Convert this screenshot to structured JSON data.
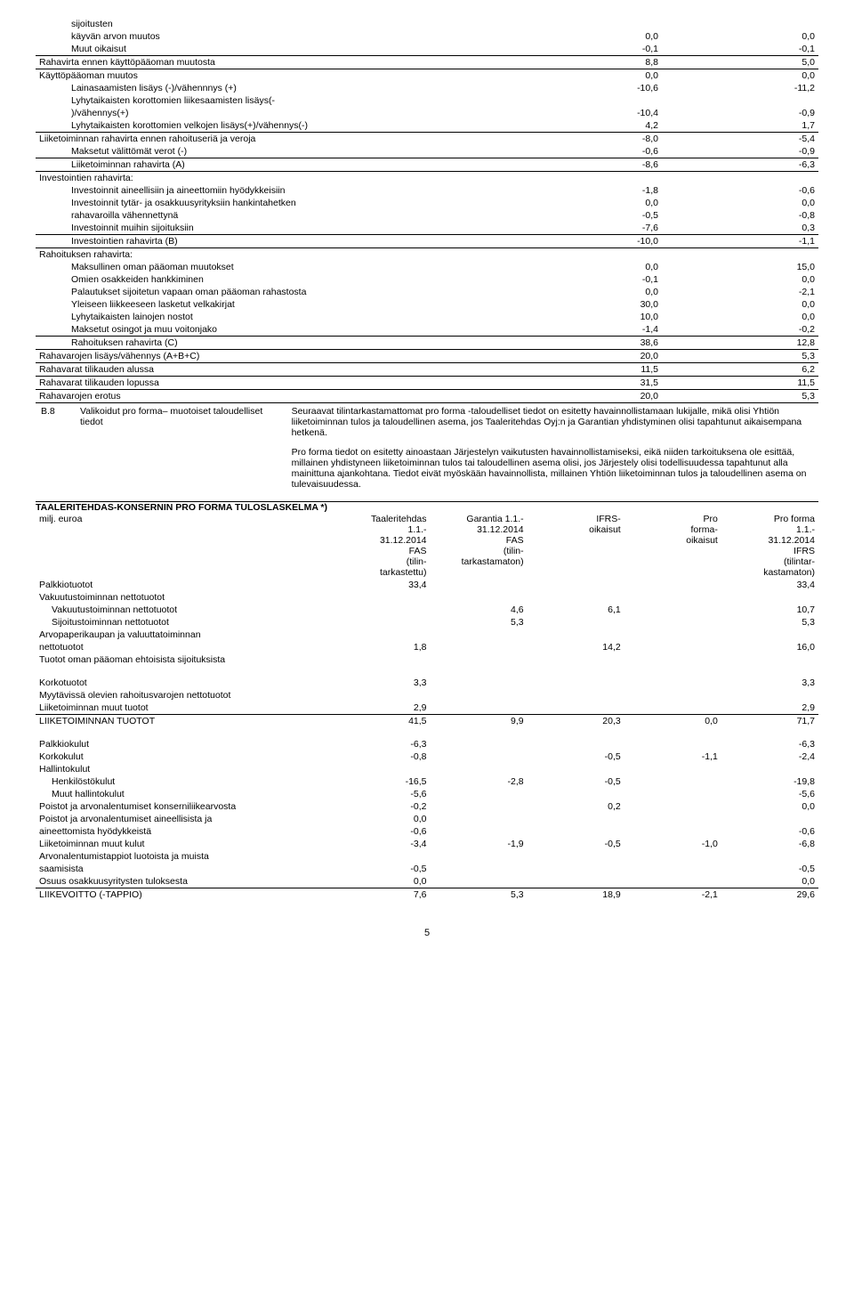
{
  "cashflow": {
    "rows": [
      {
        "label": "sijoitusten",
        "indent": 1,
        "v1": "",
        "v2": "",
        "underline": false
      },
      {
        "label": "käyvän arvon muutos",
        "indent": 1,
        "v1": "0,0",
        "v2": "0,0",
        "underline": false
      },
      {
        "label": "Muut oikaisut",
        "indent": 1,
        "v1": "-0,1",
        "v2": "-0,1",
        "underline": true
      },
      {
        "label": "Rahavirta ennen käyttöpääoman muutosta",
        "indent": 0,
        "v1": "8,8",
        "v2": "5,0",
        "underline": true
      },
      {
        "label": "Käyttöpääoman muutos",
        "indent": 0,
        "v1": "0,0",
        "v2": "0,0",
        "underline": false
      },
      {
        "label": "Lainasaamisten lisäys (-)/vähennnys (+)",
        "indent": 1,
        "v1": "-10,6",
        "v2": "-11,2",
        "underline": false
      },
      {
        "label": "Lyhytaikaisten korottomien liikesaamisten lisäys(-",
        "indent": 1,
        "v1": "",
        "v2": "",
        "underline": false
      },
      {
        "label": ")/vähennys(+)",
        "indent": 1,
        "v1": "-10,4",
        "v2": "-0,9",
        "underline": false
      },
      {
        "label": "Lyhytaikaisten korottomien velkojen lisäys(+)/vähennys(-)",
        "indent": 1,
        "v1": "4,2",
        "v2": "1,7",
        "underline": true
      },
      {
        "label": "Liiketoiminnan rahavirta ennen rahoituseriä ja veroja",
        "indent": 0,
        "v1": "-8,0",
        "v2": "-5,4",
        "underline": false
      },
      {
        "label": "Maksetut välittömät verot (-)",
        "indent": 1,
        "v1": "-0,6",
        "v2": "-0,9",
        "underline": true
      },
      {
        "label": "Liiketoiminnan rahavirta (A)",
        "indent": 1,
        "v1": "-8,6",
        "v2": "-6,3",
        "underline": true
      },
      {
        "label": "Investointien rahavirta:",
        "indent": 0,
        "v1": "",
        "v2": "",
        "underline": false
      },
      {
        "label": "Investoinnit aineellisiin ja aineettomiin  hyödykkeisiin",
        "indent": 1,
        "v1": "-1,8",
        "v2": "-0,6",
        "underline": false
      },
      {
        "label": "Investoinnit tytär- ja osakkuusyrityksiin hankintahetken",
        "indent": 1,
        "v1": "0,0",
        "v2": "0,0",
        "underline": false
      },
      {
        "label": "rahavaroilla vähennettynä",
        "indent": 1,
        "v1": "-0,5",
        "v2": "-0,8",
        "underline": false
      },
      {
        "label": "Investoinnit muihin sijoituksiin",
        "indent": 1,
        "v1": "-7,6",
        "v2": "0,3",
        "underline": true
      },
      {
        "label": "Investointien rahavirta (B)",
        "indent": 1,
        "v1": "-10,0",
        "v2": "-1,1",
        "underline": true
      },
      {
        "label": "Rahoituksen rahavirta:",
        "indent": 0,
        "v1": "",
        "v2": "",
        "underline": false
      },
      {
        "label": "Maksullinen oman pääoman muutokset",
        "indent": 1,
        "v1": "0,0",
        "v2": "15,0",
        "underline": false
      },
      {
        "label": "Omien osakkeiden hankkiminen",
        "indent": 1,
        "v1": "-0,1",
        "v2": "0,0",
        "underline": false
      },
      {
        "label": "Palautukset sijoitetun vapaan oman pääoman rahastosta",
        "indent": 1,
        "v1": "0,0",
        "v2": "-2,1",
        "underline": false
      },
      {
        "label": "Yleiseen liikkeeseen lasketut velkakirjat",
        "indent": 1,
        "v1": "30,0",
        "v2": "0,0",
        "underline": false
      },
      {
        "label": "Lyhytaikaisten lainojen nostot",
        "indent": 1,
        "v1": "10,0",
        "v2": "0,0",
        "underline": false
      },
      {
        "label": "Maksetut osingot ja muu voitonjako",
        "indent": 1,
        "v1": "-1,4",
        "v2": "-0,2",
        "underline": true
      },
      {
        "label": "Rahoituksen rahavirta (C)",
        "indent": 1,
        "v1": "38,6",
        "v2": "12,8",
        "underline": true
      },
      {
        "label": "Rahavarojen lisäys/vähennys (A+B+C)",
        "indent": 0,
        "v1": "20,0",
        "v2": "5,3",
        "underline": true
      },
      {
        "label": "Rahavarat tilikauden alussa",
        "indent": 0,
        "v1": "11,5",
        "v2": "6,2",
        "underline": true
      },
      {
        "label": "Rahavarat tilikauden lopussa",
        "indent": 0,
        "v1": "31,5",
        "v2": "11,5",
        "underline": true
      },
      {
        "label": "Rahavarojen erotus",
        "indent": 0,
        "v1": "20,0",
        "v2": "5,3",
        "underline": false
      }
    ]
  },
  "b8": {
    "code": "B.8",
    "title": "Valikoidut pro forma– muotoiset taloudelliset tiedot",
    "para1": "Seuraavat tilintarkastamattomat pro forma -taloudelliset tiedot on esitetty havainnollistamaan lukijalle, mikä olisi Yhtiön liiketoiminnan tulos ja taloudellinen asema, jos Taaleritehdas Oyj:n ja Garantian yhdistyminen olisi tapahtunut aikaisempana hetkenä.",
    "para2": "Pro forma tiedot on esitetty ainoastaan Järjestelyn vaikutusten havainnollistamiseksi, eikä niiden tarkoituksena ole esittää, millainen yhdistyneen liiketoiminnan tulos tai taloudellinen asema olisi, jos Järjestely olisi todellisuudessa tapahtunut alla mainittuna ajankohtana. Tiedot eivät myöskään havainnollista, millainen Yhtiön liiketoiminnan tulos ja taloudellinen asema on tulevaisuudessa."
  },
  "proforma": {
    "heading": "TAALERITEHDAS-KONSERNIN PRO FORMA TULOSLASKELMA *)",
    "unit_label": "milj. euroa",
    "headers": {
      "c1": [
        "Taaleritehdas",
        "1.1.-",
        "31.12.2014",
        "FAS",
        "(tilin-",
        "tarkastettu)"
      ],
      "c2": [
        "Garantia 1.1.-",
        "31.12.2014",
        "FAS",
        "(tilin-",
        "tarkastamaton)"
      ],
      "c3": [
        "IFRS-",
        "oikaisut"
      ],
      "c4": [
        "Pro",
        "forma-",
        "oikaisut"
      ],
      "c5": [
        "Pro forma",
        "1.1.-",
        "31.12.2014",
        "IFRS",
        "(tilintar-",
        "kastamaton)"
      ]
    },
    "rows": [
      {
        "label": "Palkkiotuotot",
        "c1": "33,4",
        "c2": "",
        "c3": "",
        "c4": "",
        "c5": "33,4",
        "bold": false,
        "underline": false,
        "indent": 0
      },
      {
        "label": "Vakuutustoiminnan nettotuotot",
        "c1": "",
        "c2": "",
        "c3": "",
        "c4": "",
        "c5": "",
        "bold": false,
        "underline": false,
        "indent": 0
      },
      {
        "label": "Vakuutustoiminnan nettotuotot",
        "c1": "",
        "c2": "4,6",
        "c3": "6,1",
        "c4": "",
        "c5": "10,7",
        "bold": false,
        "underline": false,
        "indent": 1
      },
      {
        "label": "Sijoitustoiminnan nettotuotot",
        "c1": "",
        "c2": "5,3",
        "c3": "",
        "c4": "",
        "c5": "5,3",
        "bold": false,
        "underline": false,
        "indent": 1
      },
      {
        "label": "Arvopaperikaupan ja valuuttatoiminnan",
        "c1": "",
        "c2": "",
        "c3": "",
        "c4": "",
        "c5": "",
        "bold": false,
        "underline": false,
        "indent": 0
      },
      {
        "label": "nettotuotot",
        "c1": "1,8",
        "c2": "",
        "c3": "14,2",
        "c4": "",
        "c5": "16,0",
        "bold": false,
        "underline": false,
        "indent": 0
      },
      {
        "label": "Tuotot oman pääoman ehtoisista sijoituksista",
        "c1": "",
        "c2": "",
        "c3": "",
        "c4": "",
        "c5": "",
        "bold": false,
        "underline": false,
        "indent": 0
      },
      {
        "spacer": true
      },
      {
        "label": "Korkotuotot",
        "c1": "3,3",
        "c2": "",
        "c3": "",
        "c4": "",
        "c5": "3,3",
        "bold": false,
        "underline": false,
        "indent": 0
      },
      {
        "label": "Myytävissä olevien rahoitusvarojen nettotuotot",
        "c1": "",
        "c2": "",
        "c3": "",
        "c4": "",
        "c5": "",
        "bold": false,
        "underline": false,
        "indent": 0
      },
      {
        "label": "Liiketoiminnan muut tuotot",
        "c1": "2,9",
        "c2": "",
        "c3": "",
        "c4": "",
        "c5": "2,9",
        "bold": false,
        "underline": true,
        "indent": 0
      },
      {
        "label": "LIIKETOIMINNAN TUOTOT",
        "c1": "41,5",
        "c2": "9,9",
        "c3": "20,3",
        "c4": "0,0",
        "c5": "71,7",
        "bold": true,
        "underline": false,
        "indent": 0
      },
      {
        "spacer": true
      },
      {
        "label": "Palkkiokulut",
        "c1": "-6,3",
        "c2": "",
        "c3": "",
        "c4": "",
        "c5": "-6,3",
        "bold": false,
        "underline": false,
        "indent": 0
      },
      {
        "label": "Korkokulut",
        "c1": "-0,8",
        "c2": "",
        "c3": "-0,5",
        "c4": "-1,1",
        "c5": "-2,4",
        "bold": false,
        "underline": false,
        "indent": 0
      },
      {
        "label": "Hallintokulut",
        "c1": "",
        "c2": "",
        "c3": "",
        "c4": "",
        "c5": "",
        "bold": false,
        "underline": false,
        "indent": 0
      },
      {
        "label": "Henkilöstökulut",
        "c1": "-16,5",
        "c2": "-2,8",
        "c3": "-0,5",
        "c4": "",
        "c5": "-19,8",
        "bold": false,
        "underline": false,
        "indent": 1
      },
      {
        "label": "Muut hallintokulut",
        "c1": "-5,6",
        "c2": "",
        "c3": "",
        "c4": "",
        "c5": "-5,6",
        "bold": false,
        "underline": false,
        "indent": 1
      },
      {
        "label": "Poistot ja arvonalentumiset konserniliikearvosta",
        "c1": "-0,2",
        "c2": "",
        "c3": "0,2",
        "c4": "",
        "c5": "0,0",
        "bold": false,
        "underline": false,
        "indent": 0
      },
      {
        "label": "Poistot ja arvonalentumiset aineellisista ja",
        "c1": "0,0",
        "c2": "",
        "c3": "",
        "c4": "",
        "c5": "",
        "bold": false,
        "underline": false,
        "indent": 0
      },
      {
        "label": "aineettomista hyödykkeistä",
        "c1": "-0,6",
        "c2": "",
        "c3": "",
        "c4": "",
        "c5": "-0,6",
        "bold": false,
        "underline": false,
        "indent": 0
      },
      {
        "label": "Liiketoiminnan muut kulut",
        "c1": "-3,4",
        "c2": "-1,9",
        "c3": "-0,5",
        "c4": "-1,0",
        "c5": "-6,8",
        "bold": false,
        "underline": false,
        "indent": 0
      },
      {
        "label": "Arvonalentumistappiot luotoista ja muista",
        "c1": "",
        "c2": "",
        "c3": "",
        "c4": "",
        "c5": "",
        "bold": false,
        "underline": false,
        "indent": 0
      },
      {
        "label": "saamisista",
        "c1": "-0,5",
        "c2": "",
        "c3": "",
        "c4": "",
        "c5": "-0,5",
        "bold": false,
        "underline": false,
        "indent": 0
      },
      {
        "label": "Osuus osakkuusyritysten tuloksesta",
        "c1": "0,0",
        "c2": "",
        "c3": "",
        "c4": "",
        "c5": "0,0",
        "bold": false,
        "underline": true,
        "indent": 0
      },
      {
        "label": "LIIKEVOITTO (-TAPPIO)",
        "c1": "7,6",
        "c2": "5,3",
        "c3": "18,9",
        "c4": "-2,1",
        "c5": "29,6",
        "bold": true,
        "underline": false,
        "indent": 0
      }
    ]
  },
  "page_number": "5"
}
